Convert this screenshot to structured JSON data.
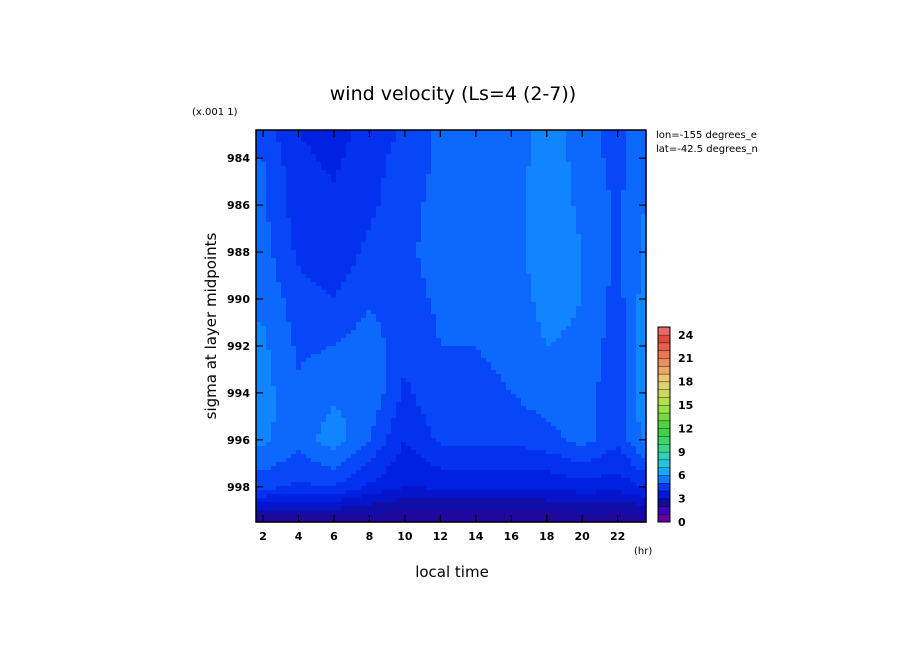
{
  "chart_data": {
    "type": "heatmap",
    "title": "wind velocity (Ls=4 (2-7))",
    "xlabel": "local time",
    "ylabel": "sigma at layer midpoints",
    "x_unit": "(hr)",
    "y_scale_note": "(x.001 1)",
    "xlim": [
      1.6,
      23.6
    ],
    "ylim": [
      999.5,
      982.8
    ],
    "x_ticks": [
      "2",
      "4",
      "6",
      "8",
      "10",
      "12",
      "14",
      "16",
      "18",
      "20",
      "22"
    ],
    "y_ticks": [
      "984",
      "986",
      "988",
      "990",
      "992",
      "994",
      "996",
      "998"
    ],
    "annotations": [
      "lon=-155 degrees_e",
      "lat=-42.5 degrees_n"
    ],
    "colorbar": {
      "min": 0,
      "max": 25,
      "step": 1,
      "tick_labels": [
        "0",
        "3",
        "6",
        "9",
        "12",
        "15",
        "18",
        "21",
        "24"
      ]
    },
    "x": [
      2,
      4,
      6,
      8,
      10,
      12,
      14,
      16,
      18,
      20,
      22,
      23.5
    ],
    "y": [
      983,
      984,
      986,
      988,
      990,
      992,
      994,
      996,
      998,
      999.3
    ],
    "z": [
      [
        4.8,
        4.0,
        3.8,
        4.2,
        4.6,
        5.1,
        5.2,
        5.2,
        5.8,
        5.3,
        4.8,
        5.4
      ],
      [
        5.0,
        4.1,
        3.9,
        4.3,
        4.7,
        5.1,
        5.2,
        5.2,
        5.8,
        5.3,
        4.8,
        5.4
      ],
      [
        5.1,
        4.2,
        4.1,
        4.4,
        4.8,
        5.2,
        5.2,
        5.3,
        5.8,
        5.4,
        4.9,
        5.5
      ],
      [
        5.2,
        4.4,
        4.2,
        4.6,
        4.9,
        5.2,
        5.2,
        5.3,
        5.8,
        5.5,
        4.9,
        5.6
      ],
      [
        5.4,
        4.7,
        4.5,
        4.9,
        4.8,
        5.1,
        5.1,
        5.2,
        5.7,
        5.5,
        4.8,
        5.7
      ],
      [
        5.6,
        4.9,
        5.0,
        5.3,
        4.6,
        5.0,
        5.0,
        5.1,
        5.5,
        5.4,
        4.7,
        5.9
      ],
      [
        5.7,
        5.1,
        5.4,
        5.4,
        4.4,
        4.9,
        4.9,
        5.0,
        5.3,
        5.3,
        4.6,
        6.0
      ],
      [
        5.6,
        5.2,
        5.8,
        5.0,
        4.0,
        4.6,
        4.6,
        4.6,
        4.8,
        5.2,
        4.6,
        5.6
      ],
      [
        4.7,
        4.4,
        4.5,
        3.9,
        3.5,
        3.6,
        3.6,
        3.6,
        3.6,
        3.8,
        3.7,
        4.0
      ],
      [
        2.4,
        2.4,
        2.4,
        2.3,
        2.2,
        2.2,
        2.2,
        2.2,
        2.2,
        2.3,
        2.2,
        2.4
      ]
    ]
  }
}
